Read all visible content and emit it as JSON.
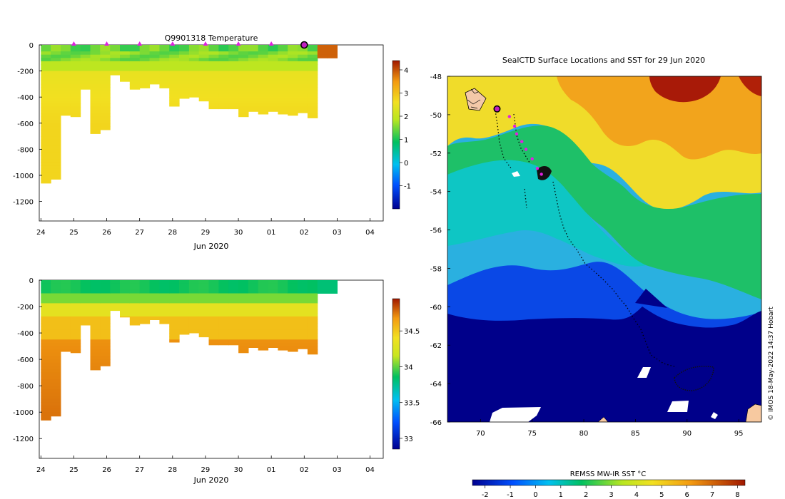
{
  "chart_data": [
    {
      "type": "heatmap",
      "id": "temperature_section",
      "title": "Q9901318  Temperature",
      "xlabel": "Jun 2020",
      "x_tick_labels": [
        "24",
        "25",
        "26",
        "27",
        "28",
        "29",
        "30",
        "01",
        "02",
        "03",
        "04"
      ],
      "ylim": [
        -1350,
        0
      ],
      "y_ticks": [
        0,
        -200,
        -400,
        -600,
        -800,
        -1000,
        -1200
      ],
      "colorbar_ticks": [
        -1,
        0,
        1,
        2,
        3,
        4
      ],
      "colorbar_range": [
        -2,
        4.4
      ],
      "profile_markers_days": [
        25,
        26,
        27,
        28,
        29,
        30,
        31
      ],
      "highlight_profile_day": 32,
      "profiles": [
        {
          "day": 24.0,
          "depth": -1060
        },
        {
          "day": 24.3,
          "depth": -1030
        },
        {
          "day": 24.6,
          "depth": -540
        },
        {
          "day": 24.9,
          "depth": -550
        },
        {
          "day": 25.2,
          "depth": -340
        },
        {
          "day": 25.5,
          "depth": -680
        },
        {
          "day": 25.8,
          "depth": -650
        },
        {
          "day": 26.1,
          "depth": -230
        },
        {
          "day": 26.4,
          "depth": -280
        },
        {
          "day": 26.7,
          "depth": -340
        },
        {
          "day": 27.0,
          "depth": -330
        },
        {
          "day": 27.3,
          "depth": -300
        },
        {
          "day": 27.6,
          "depth": -330
        },
        {
          "day": 27.9,
          "depth": -470
        },
        {
          "day": 28.2,
          "depth": -410
        },
        {
          "day": 28.5,
          "depth": -400
        },
        {
          "day": 28.8,
          "depth": -430
        },
        {
          "day": 29.1,
          "depth": -490
        },
        {
          "day": 29.4,
          "depth": -490
        },
        {
          "day": 29.7,
          "depth": -490
        },
        {
          "day": 30.0,
          "depth": -550
        },
        {
          "day": 30.3,
          "depth": -510
        },
        {
          "day": 30.6,
          "depth": -530
        },
        {
          "day": 30.9,
          "depth": -510
        },
        {
          "day": 31.2,
          "depth": -530
        },
        {
          "day": 31.5,
          "depth": -540
        },
        {
          "day": 31.8,
          "depth": -520
        },
        {
          "day": 32.1,
          "depth": -560
        },
        {
          "day": 32.4,
          "depth": -100
        },
        {
          "day": 32.7,
          "depth": -100
        }
      ]
    },
    {
      "type": "heatmap",
      "id": "salinity_section",
      "title": "",
      "xlabel": "Jun 2020",
      "x_tick_labels": [
        "24",
        "25",
        "26",
        "27",
        "28",
        "29",
        "30",
        "01",
        "02",
        "03",
        "04"
      ],
      "ylim": [
        -1350,
        0
      ],
      "y_ticks": [
        0,
        -200,
        -400,
        -600,
        -800,
        -1000,
        -1200
      ],
      "colorbar_tick_labels": [
        "33",
        "33.5",
        "34",
        "34.5"
      ],
      "colorbar_ticks": [
        33,
        33.5,
        34,
        34.5
      ],
      "colorbar_range": [
        32.85,
        34.95
      ]
    },
    {
      "type": "heatmap",
      "id": "sst_map",
      "title": "SealCTD Surface Locations and SST for 29 Jun 2020",
      "x_tick_labels": [
        "70",
        "75",
        "80",
        "85",
        "90",
        "95"
      ],
      "x_ticks": [
        70,
        75,
        80,
        85,
        90,
        95
      ],
      "y_tick_labels": [
        "-48",
        "-50",
        "-52",
        "-54",
        "-56",
        "-58",
        "-60",
        "-62",
        "-64",
        "-66"
      ],
      "y_ticks": [
        -48,
        -50,
        -52,
        -54,
        -56,
        -58,
        -60,
        -62,
        -64,
        -66
      ],
      "xlim": [
        66.8,
        97.2
      ],
      "ylim": [
        -66,
        -48
      ],
      "colorbar_label": "REMSS MW-IR SST °C",
      "colorbar_tick_labels": [
        "-2",
        "-1",
        "0",
        "1",
        "2",
        "3",
        "4",
        "5",
        "6",
        "7",
        "8"
      ],
      "colorbar_ticks": [
        -2,
        -1,
        0,
        1,
        2,
        3,
        4,
        5,
        6,
        7,
        8
      ],
      "colorbar_range": [
        -2.5,
        8.3
      ],
      "seal_positions": [
        {
          "lon": 71.6,
          "lat": -49.7
        },
        {
          "lon": 72.8,
          "lat": -50.1
        },
        {
          "lon": 73.3,
          "lat": -50.6
        },
        {
          "lon": 73.5,
          "lat": -51.0
        },
        {
          "lon": 74.0,
          "lat": -51.4
        },
        {
          "lon": 74.4,
          "lat": -51.8
        },
        {
          "lon": 75.0,
          "lat": -52.3
        },
        {
          "lon": 75.5,
          "lat": -52.8
        },
        {
          "lon": 75.9,
          "lat": -53.1
        }
      ],
      "current_position": {
        "lon": 71.6,
        "lat": -49.7
      },
      "credit": "© IMOS 18-May-2022 14:37 Hobart"
    }
  ]
}
